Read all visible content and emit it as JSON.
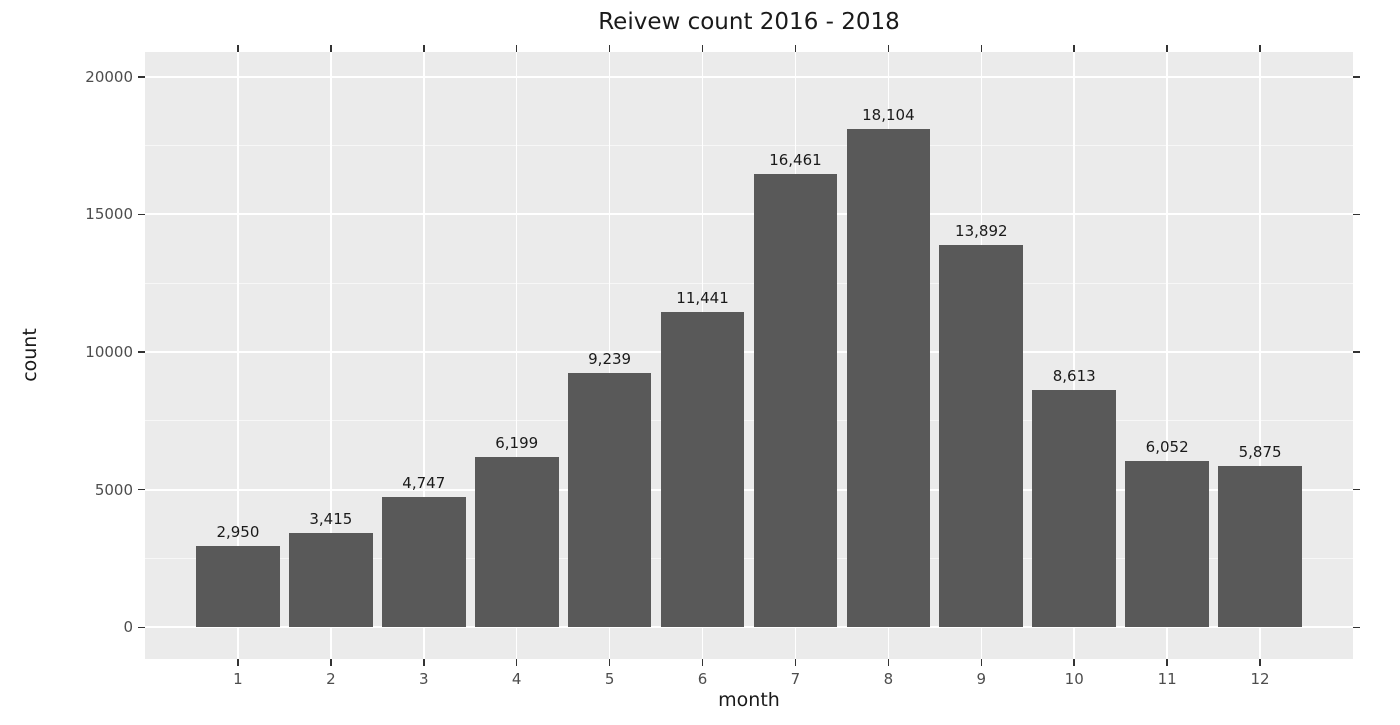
{
  "chart_data": {
    "type": "bar",
    "title": "Reivew count 2016 - 2018",
    "xlabel": "month",
    "ylabel": "count",
    "categories": [
      "1",
      "2",
      "3",
      "4",
      "5",
      "6",
      "7",
      "8",
      "9",
      "10",
      "11",
      "12"
    ],
    "values": [
      2950,
      3415,
      4747,
      6199,
      9239,
      11441,
      16461,
      18104,
      13892,
      8613,
      6052,
      5875
    ],
    "bar_labels": [
      "2,950",
      "3,415",
      "4,747",
      "6,199",
      "9,239",
      "11,441",
      "16,461",
      "18,104",
      "13,892",
      "8,613",
      "6,052",
      "5,875"
    ],
    "ylim": [
      0,
      20000
    ],
    "yticks": [
      0,
      5000,
      10000,
      15000,
      20000
    ],
    "ytick_labels": [
      "0",
      "5000",
      "10000",
      "15000",
      "20000"
    ],
    "minor_yticks": [
      2500,
      7500,
      12500,
      17500
    ],
    "grid": "major+minor, white on gray panel",
    "legend": "none",
    "colors": {
      "panel_background": "#EBEBEB",
      "bar": "#595959",
      "grid_major": "#FFFFFF",
      "grid_minor": "#F5F5F5",
      "tick_mark": "#333333",
      "tick_label": "#4D4D4D",
      "text": "#1A1A1A"
    }
  }
}
